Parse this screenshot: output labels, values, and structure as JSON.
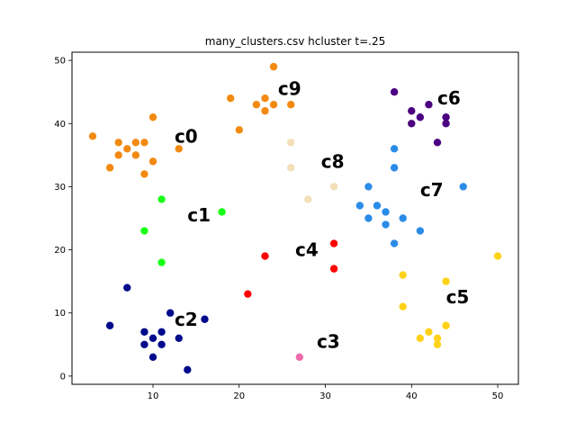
{
  "chart_data": {
    "type": "scatter",
    "title": "many_clusters.csv hcluster t=.25",
    "xlabel": "",
    "ylabel": "",
    "xlim": [
      0.6,
      52.4
    ],
    "ylim": [
      -1.3,
      51.3
    ],
    "xticks": [
      10,
      20,
      30,
      40,
      50
    ],
    "yticks": [
      0,
      10,
      20,
      30,
      40,
      50
    ],
    "grid": false,
    "series": [
      {
        "name": "c0",
        "color": "#f28a12",
        "label_at": [
          12.5,
          37
        ],
        "points": [
          [
            3,
            38
          ],
          [
            5,
            33
          ],
          [
            6,
            35
          ],
          [
            6,
            37
          ],
          [
            7,
            36
          ],
          [
            8,
            35
          ],
          [
            8,
            37
          ],
          [
            9,
            32
          ],
          [
            9,
            37
          ],
          [
            10,
            34
          ],
          [
            10,
            41
          ],
          [
            13,
            36
          ]
        ]
      },
      {
        "name": "c1",
        "color": "#1aff1a",
        "label_at": [
          14,
          24.5
        ],
        "points": [
          [
            9,
            23
          ],
          [
            11,
            28
          ],
          [
            11,
            18
          ],
          [
            18,
            26
          ]
        ]
      },
      {
        "name": "c2",
        "color": "#000a8c",
        "label_at": [
          12.5,
          8
        ],
        "points": [
          [
            5,
            8
          ],
          [
            7,
            14
          ],
          [
            9,
            7
          ],
          [
            9,
            5
          ],
          [
            10,
            6
          ],
          [
            10,
            3
          ],
          [
            11,
            7
          ],
          [
            11,
            5
          ],
          [
            12,
            10
          ],
          [
            13,
            6
          ],
          [
            14,
            1
          ],
          [
            16,
            9
          ]
        ]
      },
      {
        "name": "c3",
        "color": "#f06aaa",
        "label_at": [
          29,
          4.5
        ],
        "points": [
          [
            27,
            3
          ]
        ]
      },
      {
        "name": "c4",
        "color": "#ff0000",
        "label_at": [
          26.5,
          19
        ],
        "points": [
          [
            21,
            13
          ],
          [
            23,
            19
          ],
          [
            31,
            21
          ],
          [
            31,
            17
          ]
        ]
      },
      {
        "name": "c5",
        "color": "#ffd219",
        "label_at": [
          44,
          11.5
        ],
        "points": [
          [
            39,
            16
          ],
          [
            39,
            11
          ],
          [
            41,
            6
          ],
          [
            42,
            7
          ],
          [
            43,
            5
          ],
          [
            43,
            6
          ],
          [
            44,
            15
          ],
          [
            44,
            8
          ],
          [
            50,
            19
          ]
        ]
      },
      {
        "name": "c6",
        "color": "#4b0082",
        "label_at": [
          43,
          43
        ],
        "points": [
          [
            38,
            45
          ],
          [
            40,
            42
          ],
          [
            40,
            40
          ],
          [
            41,
            41
          ],
          [
            42,
            43
          ],
          [
            43,
            37
          ],
          [
            44,
            40
          ],
          [
            44,
            41
          ]
        ]
      },
      {
        "name": "c7",
        "color": "#2b8ce8",
        "label_at": [
          41,
          28.5
        ],
        "points": [
          [
            34,
            27
          ],
          [
            35,
            25
          ],
          [
            35,
            30
          ],
          [
            36,
            27
          ],
          [
            37,
            26
          ],
          [
            37,
            24
          ],
          [
            38,
            21
          ],
          [
            38,
            33
          ],
          [
            38,
            36
          ],
          [
            39,
            25
          ],
          [
            41,
            23
          ],
          [
            46,
            30
          ]
        ]
      },
      {
        "name": "c8",
        "color": "#f3dfb8",
        "label_at": [
          29.5,
          33
        ],
        "points": [
          [
            26,
            37
          ],
          [
            26,
            33
          ],
          [
            28,
            28
          ],
          [
            31,
            30
          ]
        ]
      },
      {
        "name": "c9",
        "color": "#f28a12",
        "label_at": [
          24.5,
          44.5
        ],
        "points": [
          [
            19,
            44
          ],
          [
            20,
            39
          ],
          [
            22,
            43
          ],
          [
            23,
            42
          ],
          [
            23,
            44
          ],
          [
            24,
            43
          ],
          [
            24,
            49
          ],
          [
            26,
            43
          ]
        ]
      }
    ]
  }
}
